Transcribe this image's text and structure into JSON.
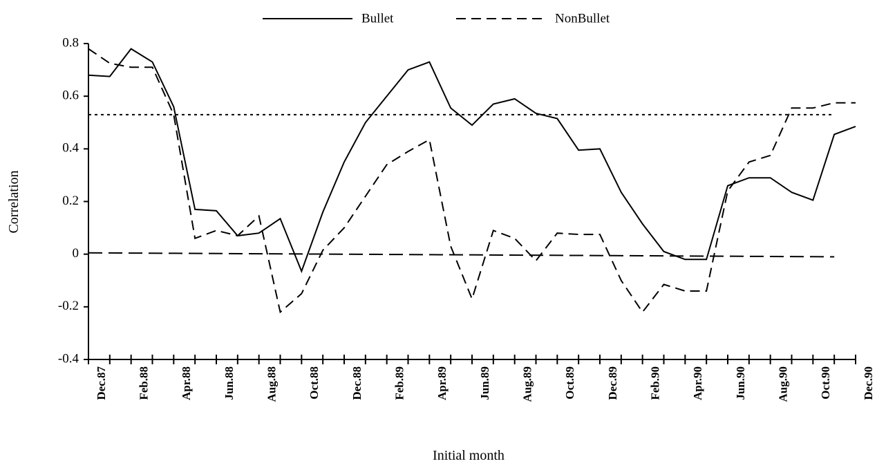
{
  "chart_data": {
    "type": "line",
    "x_label": "Initial month",
    "y_label": "Correlation",
    "categories": [
      "Dec.87",
      null,
      "Feb.88",
      null,
      "Apr.88",
      null,
      "Jun.88",
      null,
      "Aug.88",
      null,
      "Oct.88",
      null,
      "Dec.88",
      null,
      "Feb.89",
      null,
      "Apr.89",
      null,
      "Jun.89",
      null,
      "Aug.89",
      null,
      "Oct.89",
      null,
      "Dec.89",
      null,
      "Feb.90",
      null,
      "Apr.90",
      null,
      "Jun.90",
      null,
      "Aug.90",
      null,
      "Oct.90",
      null,
      "Dec.90"
    ],
    "series": [
      {
        "name": "Bullet",
        "color": "#000000",
        "dash": "none",
        "values": [
          0.68,
          0.675,
          0.78,
          0.73,
          0.56,
          0.17,
          0.165,
          0.07,
          0.08,
          0.135,
          -0.065,
          0.16,
          0.35,
          0.5,
          0.6,
          0.7,
          0.73,
          0.555,
          0.49,
          0.57,
          0.59,
          0.535,
          0.515,
          0.395,
          0.4,
          0.235,
          0.115,
          0.01,
          -0.02,
          -0.02,
          0.26,
          0.29,
          0.29,
          0.235,
          0.205,
          0.455,
          0.485
        ]
      },
      {
        "name": "NonBullet",
        "color": "#000000",
        "dash": "14,8",
        "values": [
          0.78,
          0.725,
          0.71,
          0.71,
          0.53,
          0.06,
          0.09,
          0.07,
          0.145,
          -0.22,
          -0.15,
          0.015,
          0.1,
          0.22,
          0.34,
          0.39,
          0.435,
          0.03,
          -0.17,
          0.09,
          0.06,
          -0.025,
          0.08,
          0.075,
          0.075,
          -0.1,
          -0.22,
          -0.115,
          -0.14,
          -0.14,
          0.24,
          0.35,
          0.375,
          0.555,
          0.555,
          0.575,
          0.575
        ]
      }
    ],
    "lines": [
      {
        "x": [
          0,
          35
        ],
        "y": [
          0.53,
          0.53
        ],
        "dash": "4,5",
        "color": "#000000"
      },
      {
        "x": [
          0,
          35
        ],
        "y": [
          0.005,
          -0.01
        ],
        "dash": "20,9",
        "color": "#000000"
      }
    ],
    "ylim": [
      -0.4,
      0.8
    ],
    "yticks": [
      -0.4,
      -0.2,
      0,
      0.2,
      0.4,
      0.6,
      0.8
    ],
    "grid": false,
    "legend": "top"
  }
}
